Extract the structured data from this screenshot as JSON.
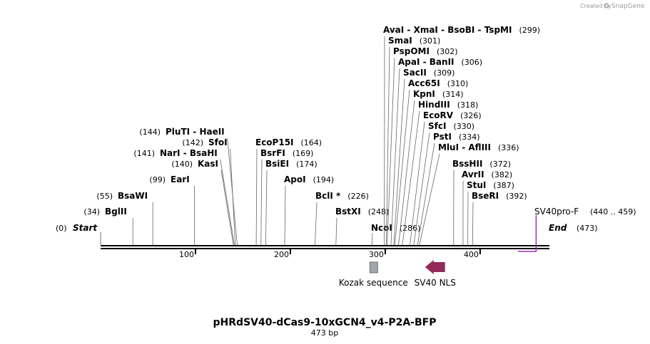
{
  "credit": {
    "text": "Created by",
    "brand": "SnapGene"
  },
  "plasmid": {
    "name": "pHRdSV40-dCas9-10xGCN4_v4-P2A-BFP",
    "length_label": "473 bp",
    "length": 473
  },
  "ends": {
    "start_label": "Start",
    "start_pos": "(0)",
    "end_label": "End",
    "end_pos": "(473)"
  },
  "ticks": [
    {
      "value": 100,
      "label": "100"
    },
    {
      "value": 200,
      "label": "200"
    },
    {
      "value": 300,
      "label": "300"
    },
    {
      "value": 400,
      "label": "400"
    }
  ],
  "sites": [
    {
      "name": "BglII",
      "pos": 34,
      "pos_label": "(34)"
    },
    {
      "name": "BsaWI",
      "pos": 55,
      "pos_label": "(55)"
    },
    {
      "name": "EarI",
      "pos": 99,
      "pos_label": "(99)"
    },
    {
      "name": "KasI",
      "pos": 140,
      "pos_label": "(140)"
    },
    {
      "name": "NarI  - BsaHI",
      "pos": 141,
      "pos_label": "(141)"
    },
    {
      "name": "SfoI",
      "pos": 142,
      "pos_label": "(142)"
    },
    {
      "name": "PluTI  - HaeII",
      "pos": 144,
      "pos_label": "(144)"
    },
    {
      "name": "EcoP15I",
      "pos": 164,
      "pos_label": "(164)"
    },
    {
      "name": "BsrFI",
      "pos": 169,
      "pos_label": "(169)"
    },
    {
      "name": "BsiEI",
      "pos": 174,
      "pos_label": "(174)"
    },
    {
      "name": "ApoI",
      "pos": 194,
      "pos_label": "(194)"
    },
    {
      "name": "BclI *",
      "pos": 226,
      "pos_label": "(226)"
    },
    {
      "name": "BstXI",
      "pos": 248,
      "pos_label": "(248)"
    },
    {
      "name": "NcoI",
      "pos": 286,
      "pos_label": "(286)"
    },
    {
      "name": "AvaI  - XmaI  - BsoBI  - TspMI",
      "pos": 299,
      "pos_label": "(299)"
    },
    {
      "name": "SmaI",
      "pos": 301,
      "pos_label": "(301)"
    },
    {
      "name": "PspOMI",
      "pos": 302,
      "pos_label": "(302)"
    },
    {
      "name": "ApaI  - BanII",
      "pos": 306,
      "pos_label": "(306)"
    },
    {
      "name": "SacII",
      "pos": 309,
      "pos_label": "(309)"
    },
    {
      "name": "Acc65I",
      "pos": 310,
      "pos_label": "(310)"
    },
    {
      "name": "KpnI",
      "pos": 314,
      "pos_label": "(314)"
    },
    {
      "name": "HindIII",
      "pos": 318,
      "pos_label": "(318)"
    },
    {
      "name": "EcoRV",
      "pos": 326,
      "pos_label": "(326)"
    },
    {
      "name": "SfcI",
      "pos": 330,
      "pos_label": "(330)"
    },
    {
      "name": "PstI",
      "pos": 334,
      "pos_label": "(334)"
    },
    {
      "name": "MluI  - AflIII",
      "pos": 336,
      "pos_label": "(336)"
    },
    {
      "name": "BssHII",
      "pos": 372,
      "pos_label": "(372)"
    },
    {
      "name": "AvrII",
      "pos": 382,
      "pos_label": "(382)"
    },
    {
      "name": "StuI",
      "pos": 387,
      "pos_label": "(387)"
    },
    {
      "name": "BseRI",
      "pos": 392,
      "pos_label": "(392)"
    }
  ],
  "primer": {
    "name": "SV40pro-F",
    "range_label": "(440 .. 459)",
    "start": 440,
    "end": 459,
    "color": "#9b2fc0"
  },
  "features": [
    {
      "name": "Kozak sequence",
      "start": 283,
      "end": 292,
      "type": "box",
      "color": "#a2a8ad"
    },
    {
      "name": "SV40 NLS",
      "start": 342,
      "end": 363,
      "type": "arrow-left",
      "color": "#922a5a"
    }
  ]
}
